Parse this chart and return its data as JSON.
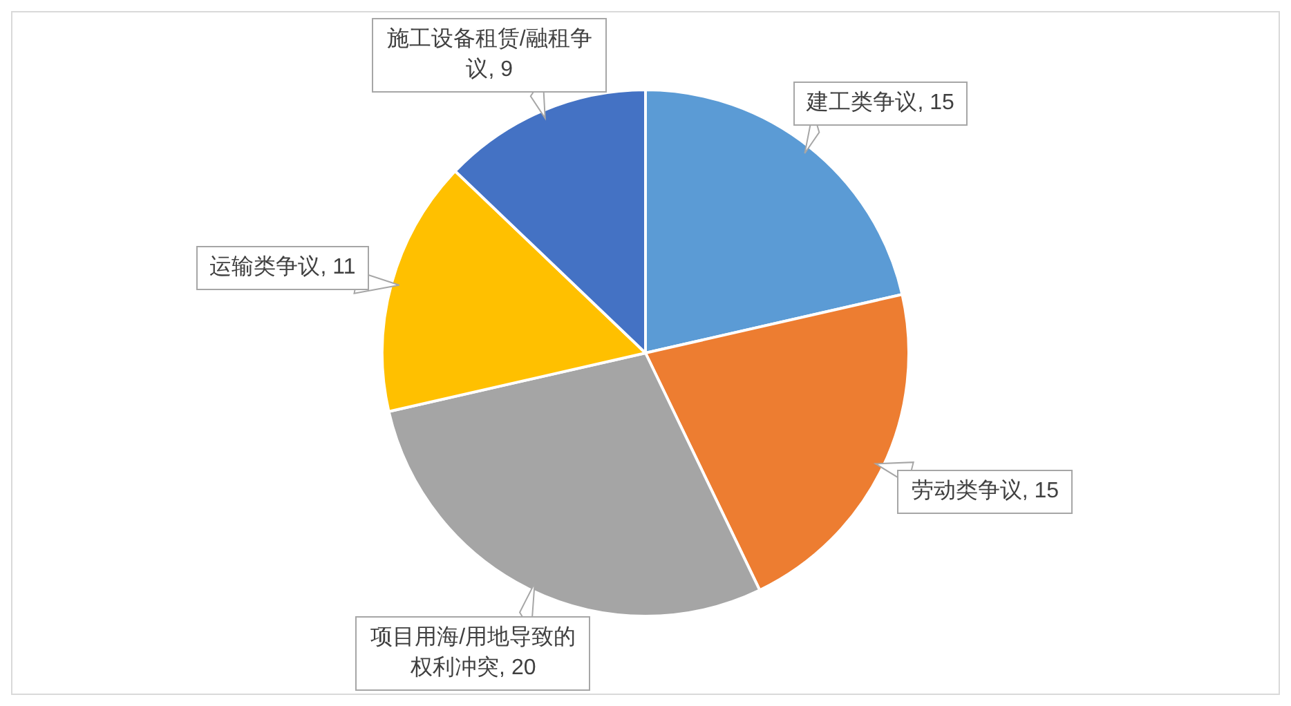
{
  "chart_data": {
    "type": "pie",
    "categories": [
      "建工类争议",
      "劳动类争议",
      "项目用海/用地导致的权利冲突",
      "运输类争议",
      "施工设备租赁/融租争议"
    ],
    "values": [
      15,
      15,
      20,
      11,
      9
    ],
    "value_labels": [
      ", 15",
      ", 15",
      ", 20",
      ", 11",
      ", 9"
    ],
    "colors": [
      "#5b9bd5",
      "#ed7d31",
      "#a5a5a5",
      "#ffc000",
      "#4472c4"
    ]
  }
}
